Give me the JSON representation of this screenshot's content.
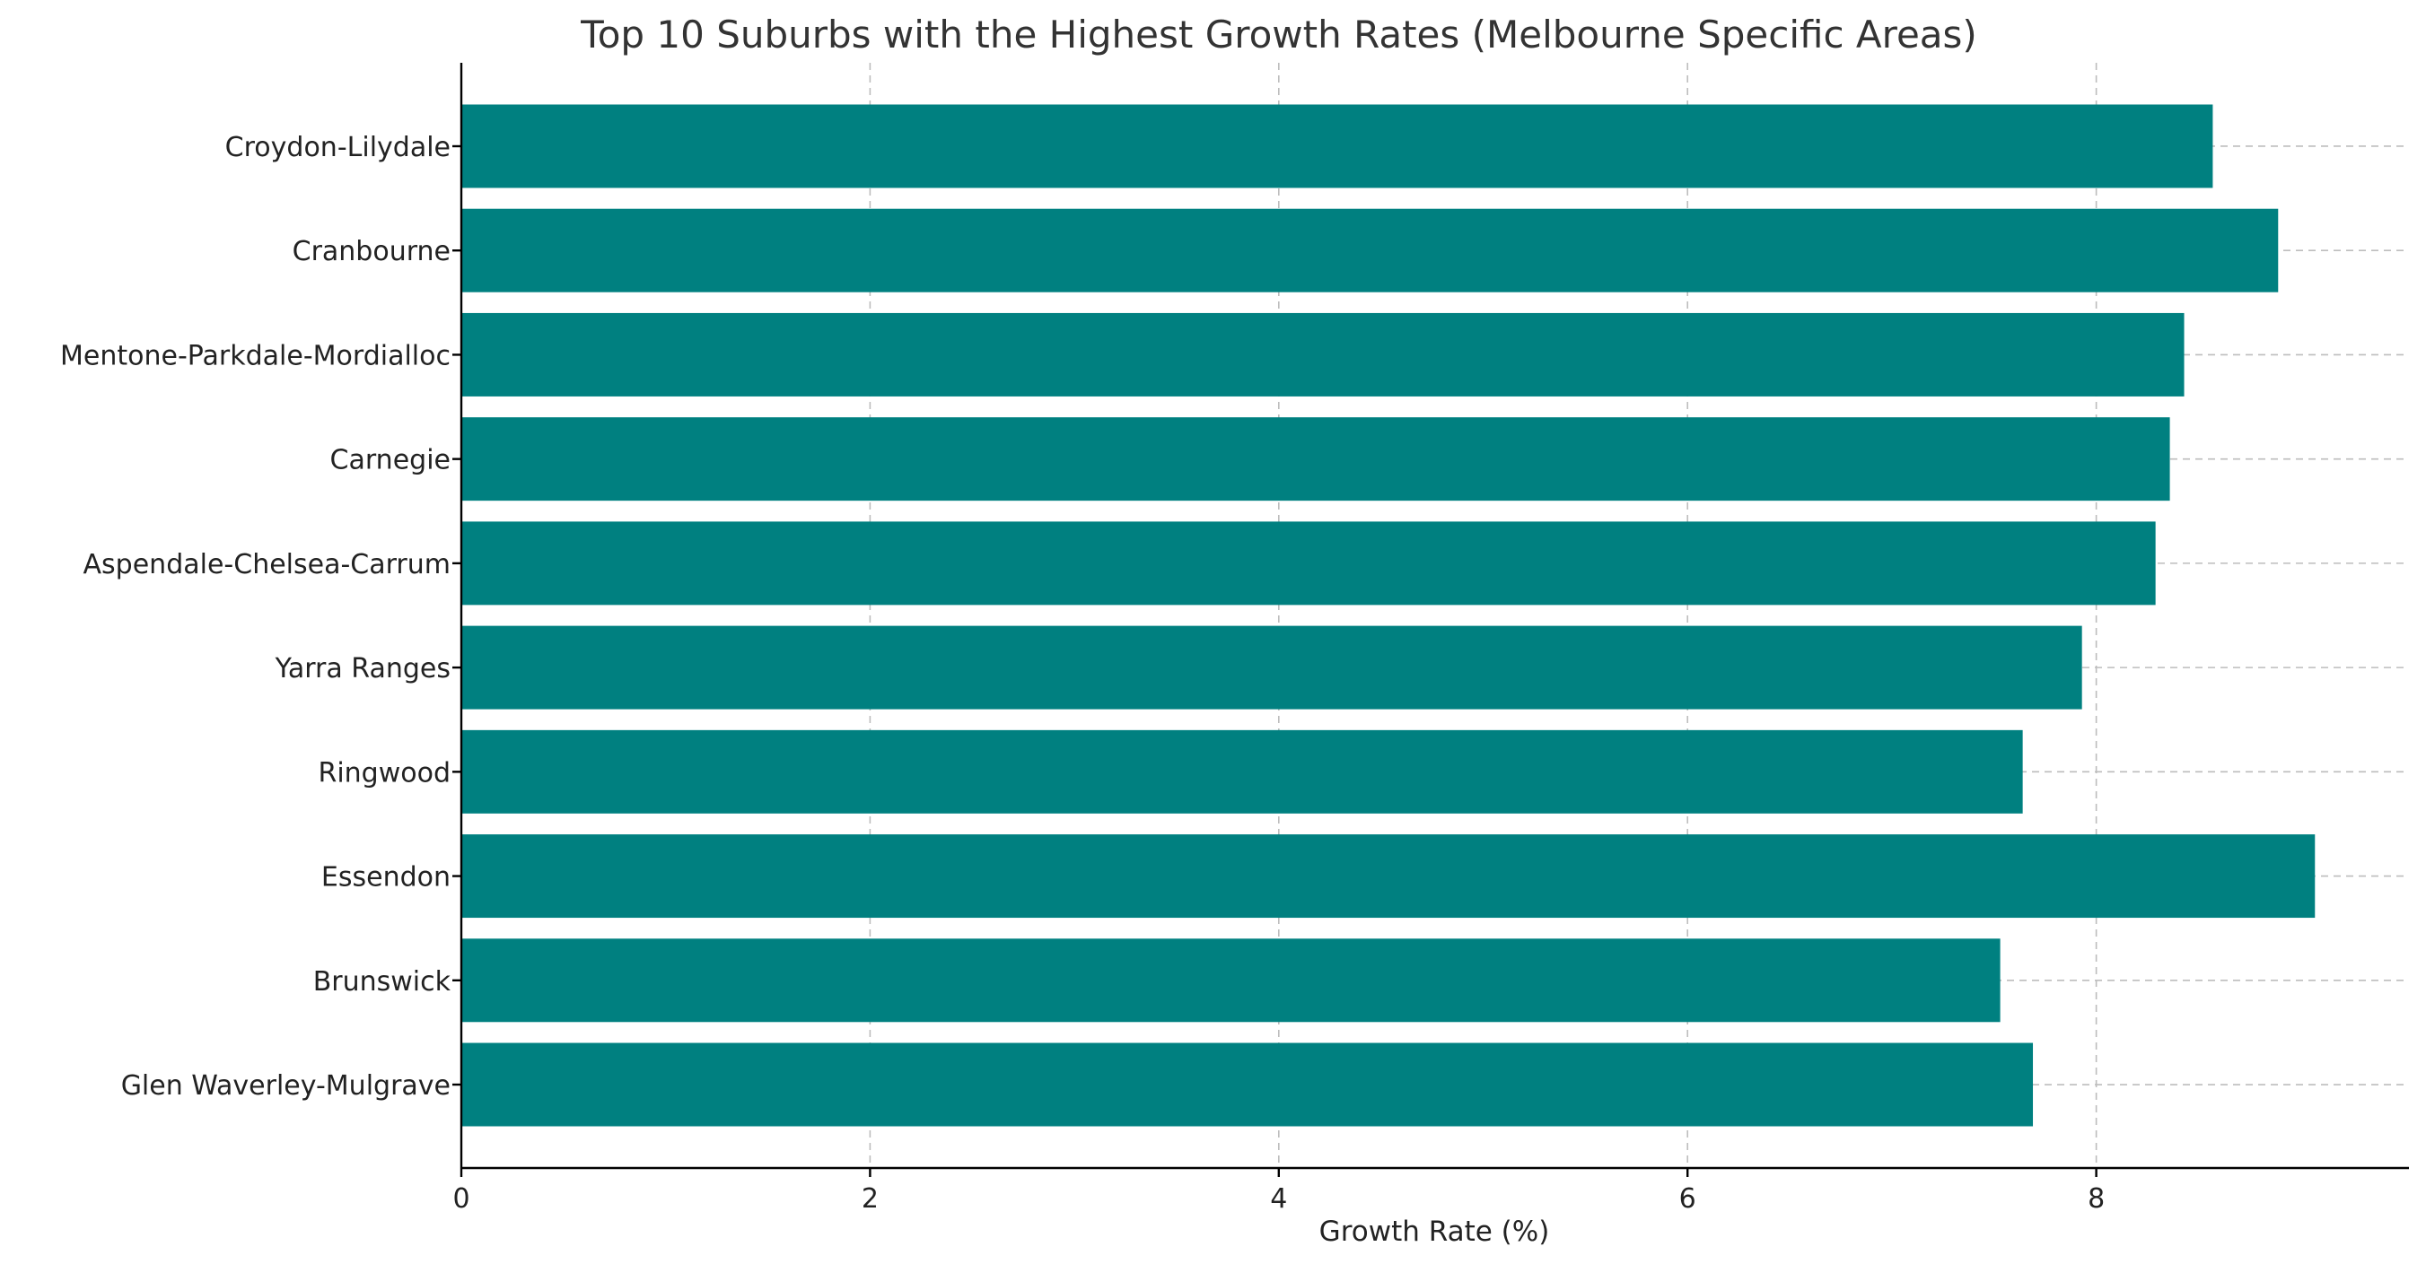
{
  "chart_data": {
    "type": "bar",
    "orientation": "horizontal",
    "title": "Top 10 Suburbs with the Highest Growth Rates (Melbourne Specific Areas)",
    "xlabel": "Growth Rate (%)",
    "ylabel": "",
    "categories": [
      "Croydon-Lilydale",
      "Cranbourne",
      "Mentone-Parkdale-Mordialloc",
      "Carnegie",
      "Aspendale-Chelsea-Carrum",
      "Yarra Ranges",
      "Ringwood",
      "Essendon",
      "Brunswick",
      "Glen Waverley-Mulgrave"
    ],
    "values": [
      8.57,
      8.89,
      8.43,
      8.36,
      8.29,
      7.93,
      7.64,
      9.07,
      7.53,
      7.69
    ],
    "xlim": [
      0,
      9.53
    ],
    "xticks": [
      0,
      2,
      4,
      6,
      8
    ],
    "bar_color": "#008080",
    "grid": true,
    "legend": false
  }
}
